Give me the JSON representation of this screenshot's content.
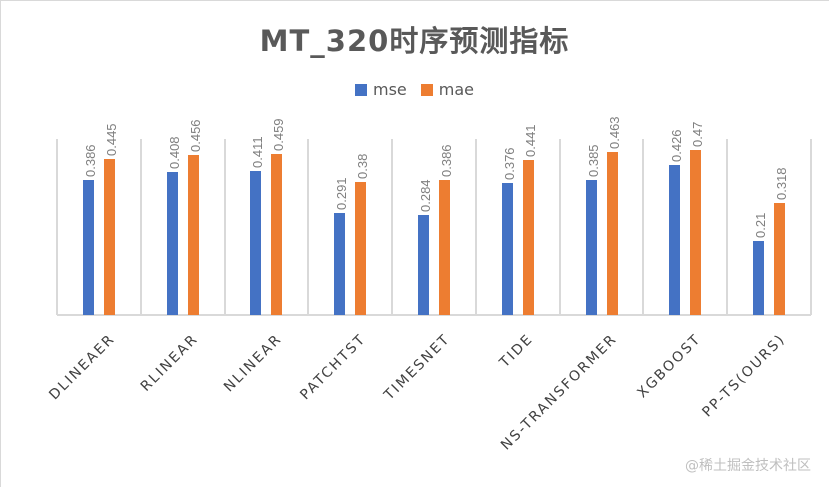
{
  "chart": {
    "title": "MT_320时序预测指标",
    "legend": [
      {
        "name": "mse",
        "color": "#4472C4"
      },
      {
        "name": "mae",
        "color": "#ED7D31"
      }
    ],
    "watermark": "@稀土掘金技术社区"
  },
  "chart_data": {
    "type": "bar",
    "title": "MT_320时序预测指标",
    "xlabel": "",
    "ylabel": "",
    "categories": [
      "DLINEAER",
      "RLINEAR",
      "NLINEAR",
      "PATCHTST",
      "TIMESNET",
      "TIDE",
      "NS-TRANSFORMER",
      "XGBOOST",
      "PP-TS(OURS)"
    ],
    "series": [
      {
        "name": "mse",
        "color": "#4472C4",
        "values": [
          0.386,
          0.408,
          0.411,
          0.291,
          0.284,
          0.376,
          0.385,
          0.426,
          0.21
        ]
      },
      {
        "name": "mae",
        "color": "#ED7D31",
        "values": [
          0.445,
          0.456,
          0.459,
          0.38,
          0.386,
          0.441,
          0.463,
          0.47,
          0.318
        ]
      }
    ],
    "data_labels": true,
    "legend_position": "top",
    "grid": "vertical category separators",
    "ylim": [
      0,
      0.5
    ]
  }
}
